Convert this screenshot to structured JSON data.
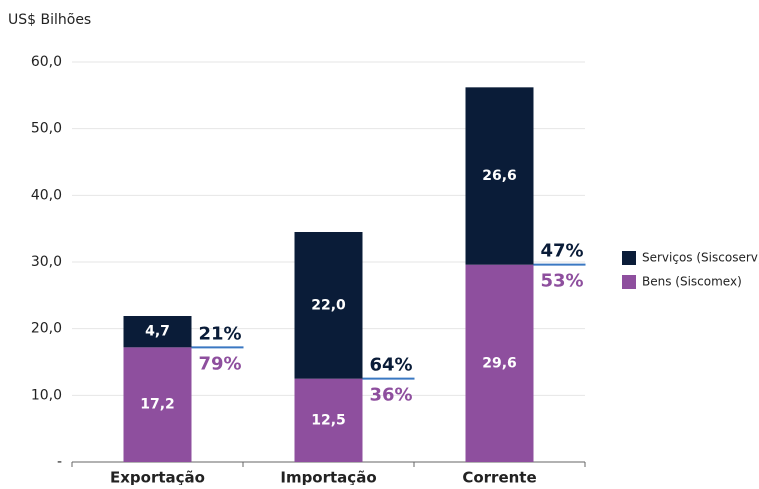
{
  "chart_data": {
    "type": "stacked_bar",
    "y_axis_label": "US$ Bilhões",
    "categories": [
      "Exportação",
      "Importação",
      "Corrente"
    ],
    "series": [
      {
        "name": "Bens (Siscomex)",
        "color": "#8e4f9e",
        "values": [
          17.2,
          12.5,
          29.6
        ],
        "value_labels": [
          "17,2",
          "12,5",
          "29,6"
        ],
        "share_labels": [
          "79%",
          "36%",
          "53%"
        ]
      },
      {
        "name": "Serviços (Siscoserv)",
        "color": "#0a1c38",
        "values": [
          4.7,
          22.0,
          26.6
        ],
        "value_labels": [
          "4,7",
          "22,0",
          "26,6"
        ],
        "share_labels": [
          "21%",
          "64%",
          "47%"
        ]
      }
    ],
    "ylim": [
      0,
      60
    ],
    "yticks": [
      {
        "value": 0,
        "label": "-"
      },
      {
        "value": 10,
        "label": "10,0"
      },
      {
        "value": 20,
        "label": "20,0"
      },
      {
        "value": 30,
        "label": "30,0"
      },
      {
        "value": 40,
        "label": "40,0"
      },
      {
        "value": 50,
        "label": "50,0"
      },
      {
        "value": 60,
        "label": "60,0"
      }
    ],
    "grid": true,
    "legend": "right"
  }
}
